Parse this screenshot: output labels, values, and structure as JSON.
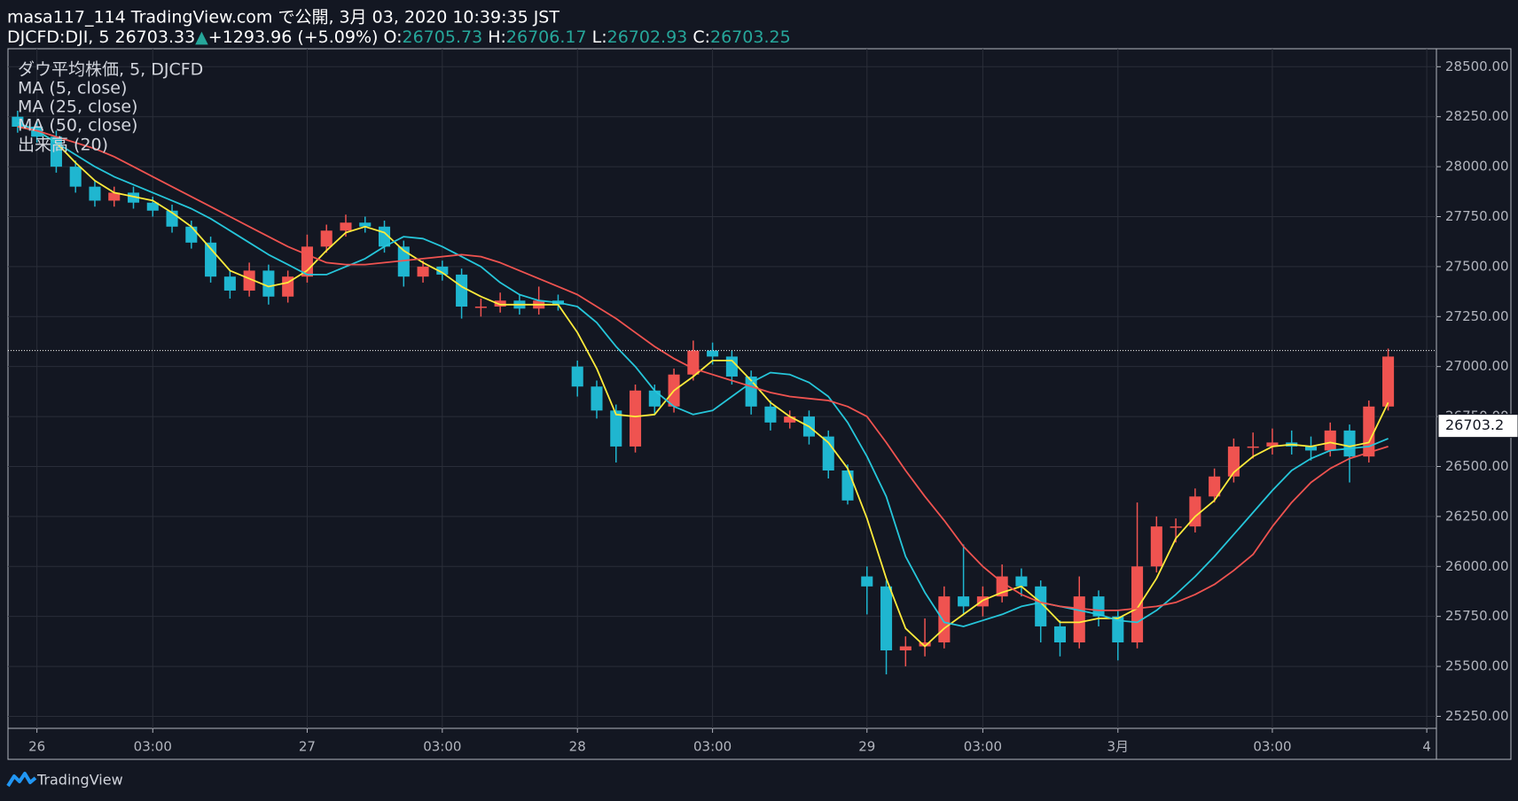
{
  "header": {
    "line1": "masa117_114 TradingView.com で公開, 3月 03, 2020 10:39:35 JST",
    "line2": [
      {
        "text": "DJCFD:DJI, 5 26703.33",
        "color": "#ffffff"
      },
      {
        "text": "▲",
        "color": "#26a69a"
      },
      {
        "text": "+1293.96 (+5.09%) O:",
        "color": "#ffffff"
      },
      {
        "text": "26705.73",
        "color": "#26a69a"
      },
      {
        "text": " H:",
        "color": "#ffffff"
      },
      {
        "text": "26706.17",
        "color": "#26a69a"
      },
      {
        "text": " L:",
        "color": "#ffffff"
      },
      {
        "text": "26702.93",
        "color": "#26a69a"
      },
      {
        "text": " C:",
        "color": "#ffffff"
      },
      {
        "text": "26703.25",
        "color": "#26a69a"
      }
    ]
  },
  "footer": {
    "brand": "TradingView"
  },
  "chart_data": {
    "type": "candlestick",
    "title": "ダウ平均株価, 5, DJCFD",
    "volume_label": "出来高 (20)",
    "up_color": "#ef5350",
    "down_color": "#1fb6d0",
    "grid": true,
    "categories": [
      null,
      "26",
      null,
      null,
      null,
      null,
      null,
      "03:00",
      null,
      null,
      null,
      null,
      null,
      null,
      null,
      "27",
      null,
      null,
      null,
      null,
      null,
      null,
      "03:00",
      null,
      null,
      null,
      null,
      null,
      null,
      "28",
      null,
      null,
      null,
      null,
      null,
      null,
      "03:00",
      null,
      null,
      null,
      null,
      null,
      null,
      null,
      "29",
      null,
      null,
      null,
      null,
      null,
      "03:00",
      null,
      null,
      null,
      null,
      null,
      null,
      "3月",
      null,
      null,
      null,
      null,
      null,
      null,
      null,
      "03:00",
      null,
      null,
      null,
      null,
      null,
      null,
      null,
      "4"
    ],
    "open": [
      28250,
      28200,
      28150,
      28000,
      27900,
      27830,
      27870,
      27820,
      27780,
      27700,
      27620,
      27450,
      27380,
      27480,
      27350,
      27450,
      27600,
      27680,
      27720,
      27700,
      27600,
      27450,
      27500,
      27460,
      27300,
      27300,
      27330,
      27290,
      27330,
      27000,
      26900,
      26780,
      26600,
      26880,
      26800,
      26960,
      27080,
      27050,
      26950,
      26800,
      26720,
      26750,
      26650,
      26480,
      25950,
      25900,
      25580,
      25600,
      25620,
      25850,
      25800,
      25850,
      25950,
      25900,
      25700,
      25620,
      25850,
      25750,
      25620,
      26000,
      26200,
      26200,
      26350,
      26450,
      26600,
      26600,
      26620,
      26600,
      26580,
      26680,
      26550,
      26800,
      null,
      null
    ],
    "high": [
      28280,
      28230,
      28180,
      28030,
      27930,
      27900,
      27900,
      27850,
      27810,
      27730,
      27650,
      27480,
      27520,
      27510,
      27480,
      27660,
      27710,
      27760,
      27750,
      27730,
      27630,
      27530,
      27530,
      27490,
      27340,
      27370,
      27360,
      27400,
      27360,
      27030,
      26930,
      26810,
      26910,
      26910,
      26990,
      27130,
      27120,
      27080,
      26980,
      26830,
      26780,
      26780,
      26680,
      26510,
      26000,
      25930,
      25650,
      25740,
      25900,
      26110,
      25900,
      26010,
      25990,
      25930,
      25730,
      25950,
      25880,
      25780,
      26320,
      26250,
      26240,
      26390,
      26490,
      26640,
      26670,
      26690,
      26680,
      26650,
      26720,
      26710,
      26830,
      27090,
      null,
      null
    ],
    "low": [
      28170,
      28120,
      27970,
      27870,
      27800,
      27800,
      27790,
      27750,
      27670,
      27590,
      27420,
      27340,
      27350,
      27310,
      27320,
      27420,
      27570,
      27650,
      27670,
      27570,
      27400,
      27420,
      27430,
      27240,
      27250,
      27270,
      27260,
      27260,
      27280,
      26850,
      26740,
      26520,
      26570,
      26760,
      26770,
      26930,
      27010,
      26910,
      26760,
      26680,
      26690,
      26610,
      26440,
      26310,
      25760,
      25460,
      25500,
      25550,
      25590,
      25760,
      25750,
      25820,
      25850,
      25620,
      25550,
      25590,
      25700,
      25530,
      25590,
      25970,
      26120,
      26170,
      26320,
      26420,
      26540,
      26560,
      26560,
      26530,
      26550,
      26420,
      26520,
      26780,
      null,
      null
    ],
    "close": [
      28200,
      28150,
      28000,
      27900,
      27830,
      27870,
      27820,
      27780,
      27700,
      27620,
      27450,
      27380,
      27480,
      27350,
      27450,
      27600,
      27680,
      27720,
      27700,
      27600,
      27450,
      27500,
      27460,
      27300,
      27300,
      27330,
      27290,
      27330,
      27310,
      26900,
      26780,
      26600,
      26880,
      26800,
      26960,
      27080,
      27050,
      26950,
      26800,
      26720,
      26750,
      26650,
      26480,
      26330,
      25900,
      25580,
      25600,
      25620,
      25850,
      25800,
      25850,
      25950,
      25900,
      25700,
      25620,
      25850,
      25750,
      25620,
      26000,
      26200,
      26200,
      26350,
      26450,
      26600,
      26600,
      26620,
      26600,
      26580,
      26680,
      26550,
      26800,
      27050,
      null,
      null
    ],
    "series": [
      {
        "name": "MA (5, close)",
        "color": "#ffeb3b",
        "values": [
          28200,
          28180,
          28120,
          28020,
          27930,
          27870,
          27850,
          27830,
          27770,
          27700,
          27590,
          27480,
          27440,
          27400,
          27420,
          27480,
          27580,
          27670,
          27700,
          27670,
          27580,
          27520,
          27470,
          27400,
          27350,
          27310,
          27310,
          27310,
          27310,
          27170,
          26990,
          26760,
          26750,
          26760,
          26880,
          26950,
          27030,
          27030,
          26930,
          26820,
          26750,
          26700,
          26620,
          26490,
          26240,
          25940,
          25690,
          25600,
          25690,
          25760,
          25830,
          25870,
          25900,
          25820,
          25720,
          25720,
          25740,
          25740,
          25790,
          25940,
          26140,
          26250,
          26330,
          26470,
          26550,
          26600,
          26610,
          26600,
          26620,
          26600,
          26620,
          26820,
          null,
          null
        ]
      },
      {
        "name": "MA (25, close)",
        "color": "#26c6da",
        "values": [
          28220,
          28180,
          28120,
          28060,
          28000,
          27950,
          27910,
          27870,
          27830,
          27790,
          27740,
          27680,
          27620,
          27560,
          27510,
          27460,
          27460,
          27500,
          27540,
          27600,
          27650,
          27640,
          27600,
          27550,
          27500,
          27420,
          27360,
          27330,
          27320,
          27300,
          27220,
          27100,
          27000,
          26880,
          26800,
          26760,
          26780,
          26850,
          26920,
          26970,
          26960,
          26920,
          26850,
          26720,
          26550,
          26350,
          26050,
          25870,
          25720,
          25700,
          25730,
          25760,
          25800,
          25820,
          25800,
          25780,
          25760,
          25730,
          25720,
          25780,
          25860,
          25950,
          26050,
          26160,
          26270,
          26380,
          26480,
          26540,
          26580,
          26590,
          26600,
          26640,
          null,
          null
        ]
      },
      {
        "name": "MA (50, close)",
        "color": "#ef5350",
        "values": [
          28200,
          28180,
          28150,
          28120,
          28090,
          28050,
          28000,
          27950,
          27900,
          27850,
          27800,
          27750,
          27700,
          27650,
          27600,
          27560,
          27520,
          27510,
          27510,
          27520,
          27530,
          27540,
          27550,
          27560,
          27550,
          27520,
          27480,
          27440,
          27400,
          27360,
          27300,
          27240,
          27170,
          27100,
          27040,
          26990,
          26960,
          26930,
          26900,
          26870,
          26850,
          26840,
          26830,
          26800,
          26750,
          26620,
          26480,
          26350,
          26230,
          26100,
          26000,
          25920,
          25860,
          25820,
          25800,
          25790,
          25780,
          25780,
          25790,
          25800,
          25820,
          25860,
          25910,
          25980,
          26060,
          26200,
          26320,
          26420,
          26490,
          26540,
          26570,
          26600,
          null,
          null
        ]
      }
    ],
    "price_line": 27080,
    "last_price": 26703.2,
    "ylim": [
      25190,
      28590
    ],
    "yticks": [
      {
        "value": 25250,
        "label": "25250.00"
      },
      {
        "value": 25500,
        "label": "25500.00"
      },
      {
        "value": 25750,
        "label": "25750.00"
      },
      {
        "value": 26000,
        "label": "26000.00"
      },
      {
        "value": 26250,
        "label": "26250.00"
      },
      {
        "value": 26500,
        "label": "26500.00"
      },
      {
        "value": 26750,
        "label": "26750.00"
      },
      {
        "value": 27000,
        "label": "27000.00"
      },
      {
        "value": 27250,
        "label": "27250.00"
      },
      {
        "value": 27500,
        "label": "27500.00"
      },
      {
        "value": 27750,
        "label": "27750.00"
      },
      {
        "value": 28000,
        "label": "28000.00"
      },
      {
        "value": 28250,
        "label": "28250.00"
      },
      {
        "value": 28500,
        "label": "28500.00"
      }
    ]
  }
}
